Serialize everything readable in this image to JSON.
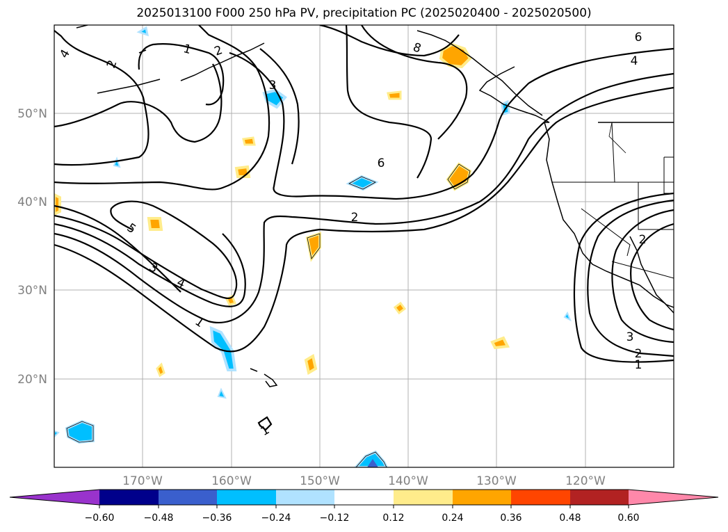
{
  "title": "2025013100 F000 250 hPa PV, precipitation PC (2025020400 - 2025020500)",
  "lat_ticks": [
    "50°N",
    "40°N",
    "30°N",
    "20°N"
  ],
  "lon_ticks": [
    "170°W",
    "160°W",
    "150°W",
    "140°W",
    "130°W",
    "120°W"
  ],
  "contour_labels": [
    "1",
    "2",
    "4",
    "2",
    "3",
    "8",
    "6",
    "4",
    "6",
    "2",
    "5",
    "3",
    "4",
    "1",
    "1",
    "2",
    "3",
    "2",
    "1"
  ],
  "colorbar": {
    "ticks": [
      "−0.60",
      "−0.48",
      "−0.36",
      "−0.24",
      "−0.12",
      "0.12",
      "0.24",
      "0.36",
      "0.48",
      "0.60"
    ],
    "colors": [
      "#9933cc",
      "#00008b",
      "#3a5fcd",
      "#00bfff",
      "#b0e2ff",
      "#ffffff",
      "#ffec8b",
      "#ffa500",
      "#ff4500",
      "#b22222",
      "#ff88aa"
    ]
  }
}
